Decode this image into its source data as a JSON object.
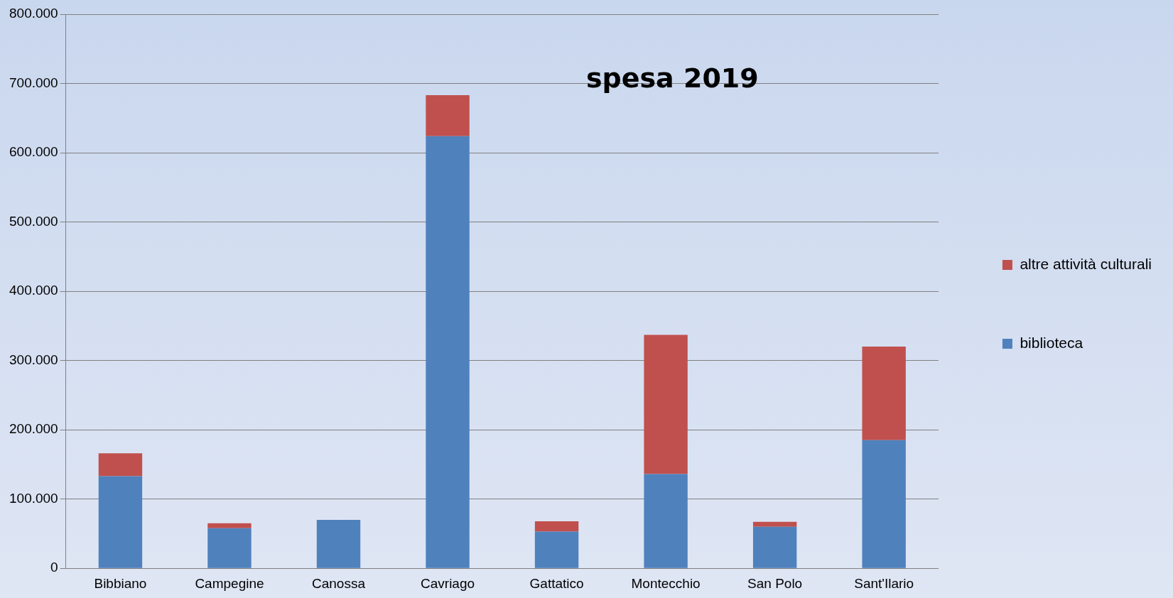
{
  "chart_data": {
    "type": "bar",
    "title": "spesa 2019",
    "stacked": true,
    "grid": "y",
    "legend": "right",
    "categories": [
      "Bibbiano",
      "Campegine",
      "Canossa",
      "Cavriago",
      "Gattatico",
      "Montecchio",
      "San Polo",
      "Sant'Ilario"
    ],
    "series": [
      {
        "name": "biblioteca",
        "color": "#4f81bd",
        "values": [
          133000,
          58000,
          70000,
          624000,
          53000,
          136000,
          60000,
          185000
        ]
      },
      {
        "name": "altre attività culturali",
        "color": "#c0504d",
        "values": [
          33000,
          7000,
          0,
          59000,
          15000,
          201000,
          7000,
          135000
        ]
      }
    ],
    "ylim": [
      0,
      800000
    ],
    "yticks": [
      0,
      {
        "value": 100000,
        "label": "100.000"
      },
      {
        "value": 200000,
        "label": "200.000"
      },
      {
        "value": 300000,
        "label": "300.000"
      },
      {
        "value": 400000,
        "label": "400.000"
      },
      {
        "value": 500000,
        "label": "500.000"
      },
      {
        "value": 600000,
        "label": "600.000"
      },
      {
        "value": 700000,
        "label": "700.000"
      },
      {
        "value": 800000,
        "label": "800.000"
      }
    ]
  }
}
